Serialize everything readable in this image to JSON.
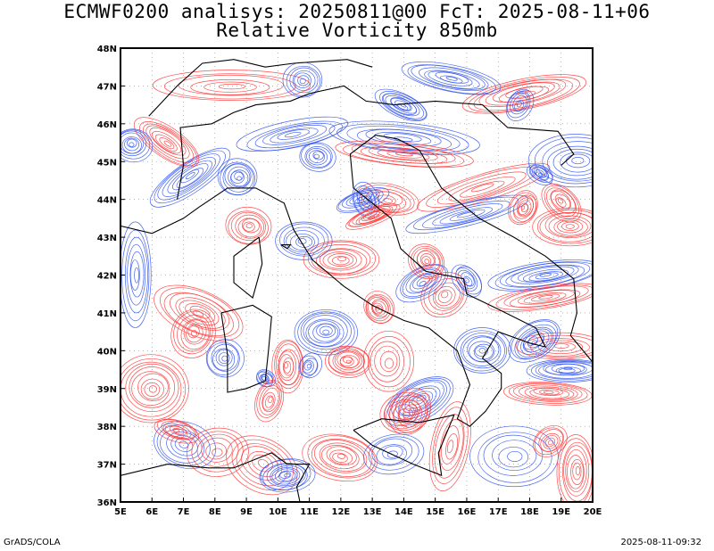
{
  "header": {
    "title_line1": "ECMWF0200 analisys: 20250811@00 FcT: 2025-08-11+06",
    "title_line2": "Relative Vorticity 850mb"
  },
  "map": {
    "lon_labels": [
      "5E",
      "6E",
      "7E",
      "8E",
      "9E",
      "10E",
      "11E",
      "12E",
      "13E",
      "14E",
      "15E",
      "16E",
      "17E",
      "18E",
      "19E",
      "20E"
    ],
    "lat_labels": [
      "48N",
      "47N",
      "46N",
      "45N",
      "44N",
      "43N",
      "42N",
      "41N",
      "40N",
      "39N",
      "38N",
      "37N",
      "36N"
    ],
    "lon_range": [
      5,
      20
    ],
    "lat_range": [
      36,
      48
    ],
    "colors": {
      "positive": "#ff3a3a",
      "negative": "#3355ee",
      "coast": "#000000"
    }
  },
  "footer": {
    "left": "GrADS/COLA",
    "right": "2025-08-11-09:32"
  }
}
